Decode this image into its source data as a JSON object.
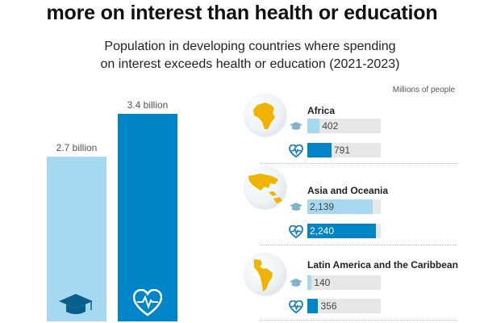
{
  "header": {
    "title": "more on interest than health or education",
    "subtitle_line1": "Population in developing countries where spending",
    "subtitle_line2": "on interest exceeds health or education (2021-2023)",
    "units": "Millions of people"
  },
  "colors": {
    "education": "#a6d8f1",
    "health": "#0086c8",
    "track": "#e7e7e7",
    "africa": "#f0b400"
  },
  "icons": {
    "education": "graduation-cap-icon",
    "health": "heart-pulse-icon"
  },
  "chart_data": [
    {
      "type": "bar",
      "categories": [
        "education",
        "health"
      ],
      "values": [
        2.7,
        3.4
      ],
      "data_labels": [
        "2.7 billion",
        "3.4 billion"
      ],
      "ylim": [
        0,
        3.6
      ]
    },
    {
      "type": "bar",
      "orientation": "horizontal",
      "categories": [
        "Africa",
        "Asia and Oceania",
        "Latin America and the Caribbean"
      ],
      "series": [
        {
          "key": "education",
          "values": [
            402,
            2139,
            140
          ],
          "labels": [
            "402",
            "2,139",
            "140"
          ]
        },
        {
          "key": "health",
          "values": [
            791,
            2240,
            356
          ],
          "labels": [
            "791",
            "2,240",
            "356"
          ]
        }
      ],
      "xlim": [
        0,
        2400
      ]
    }
  ]
}
